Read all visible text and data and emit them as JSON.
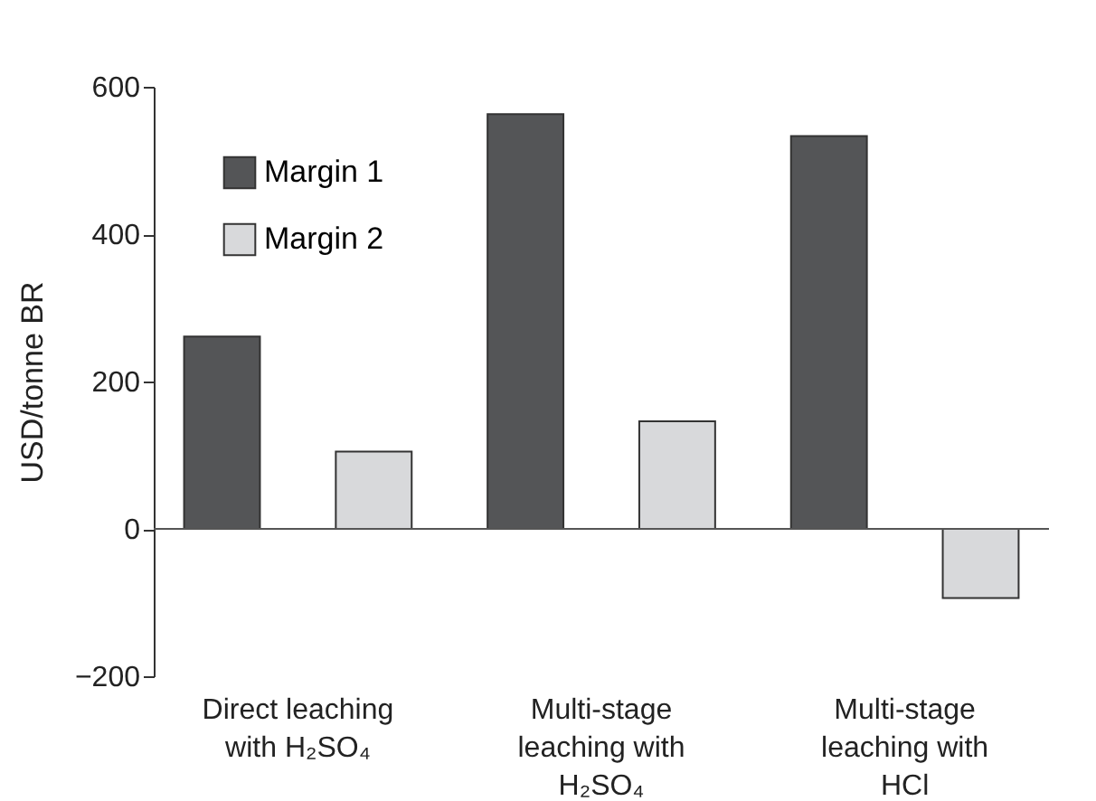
{
  "chart_data": {
    "type": "bar",
    "ylabel": "USD/tonne BR",
    "categories": [
      "Direct leaching with H₂SO₄",
      "Multi-stage leaching with H₂SO₄",
      "Multi-stage leaching with HCl"
    ],
    "series": [
      {
        "name": "Margin 1",
        "color": "#545557",
        "values": [
          261,
          563,
          533
        ]
      },
      {
        "name": "Margin 2",
        "color": "#d8d9db",
        "values": [
          105,
          146,
          -94
        ]
      }
    ],
    "ylim": [
      -200,
      600
    ],
    "yticks": [
      -200,
      0,
      200,
      400,
      600
    ],
    "grid": false,
    "legend": "top left",
    "ref_lines": [
      {
        "axis": "y",
        "value": 0,
        "color": "#555555"
      }
    ]
  }
}
